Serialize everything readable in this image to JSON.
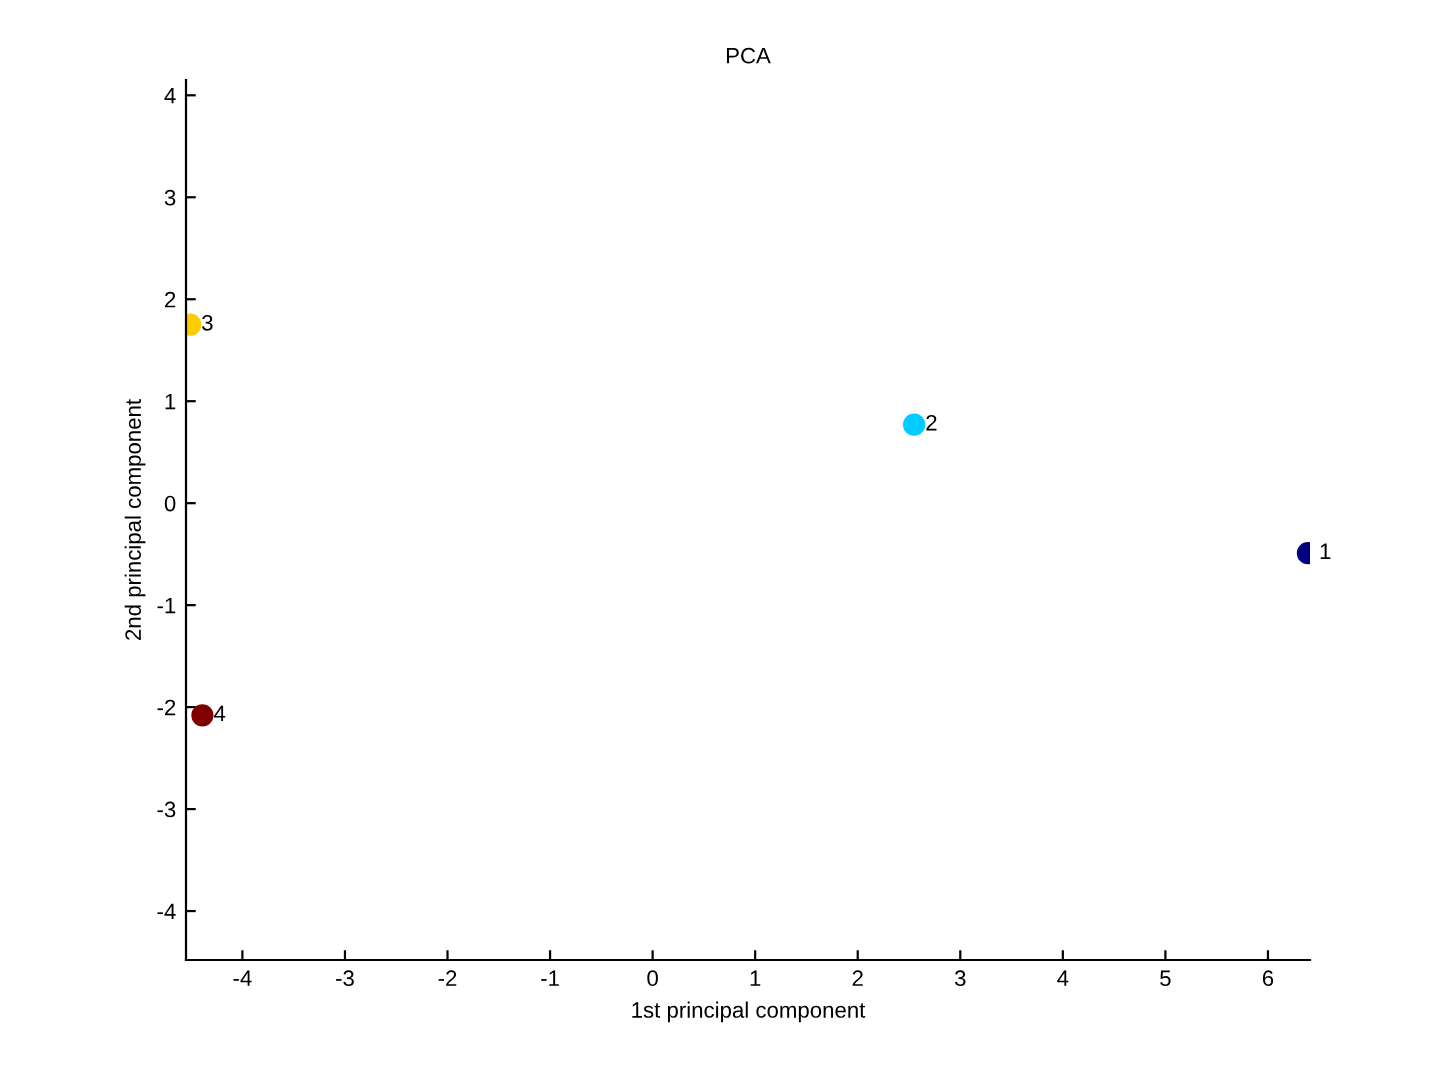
{
  "chart_data": {
    "type": "scatter",
    "title": "PCA",
    "xlabel": "1st principal component",
    "ylabel": "2nd principal component",
    "series": [
      {
        "name": "1",
        "color": "#000080",
        "x": [
          6.39
        ],
        "values": [
          -0.49
        ]
      },
      {
        "name": "2",
        "color": "#00ccff",
        "x": [
          2.55
        ],
        "values": [
          0.77
        ]
      },
      {
        "name": "3",
        "color": "#ffcc00",
        "x": [
          -4.51
        ],
        "values": [
          1.75
        ]
      },
      {
        "name": "4",
        "color": "#800000",
        "x": [
          -4.39
        ],
        "values": [
          -2.08
        ]
      }
    ],
    "xlim": [
      -4.55,
      6.41
    ],
    "ylim": [
      -4.48,
      4.15
    ],
    "xticks": [
      -4,
      -3,
      -2,
      -1,
      0,
      1,
      2,
      3,
      4,
      5,
      6
    ],
    "yticks": [
      -4,
      -3,
      -2,
      -1,
      0,
      1,
      2,
      3,
      4
    ],
    "grid": false,
    "legend": false,
    "marker": "circle"
  }
}
